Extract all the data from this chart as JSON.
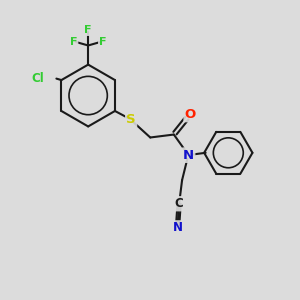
{
  "bg_color": "#dcdcdc",
  "bond_color": "#1a1a1a",
  "atom_colors": {
    "F": "#33cc33",
    "Cl": "#33cc33",
    "S": "#cccc00",
    "O": "#ff2200",
    "N": "#1111cc",
    "C": "#1a1a1a",
    "N_cyan": "#1111cc"
  },
  "bond_width": 1.5,
  "dbo": 0.055
}
